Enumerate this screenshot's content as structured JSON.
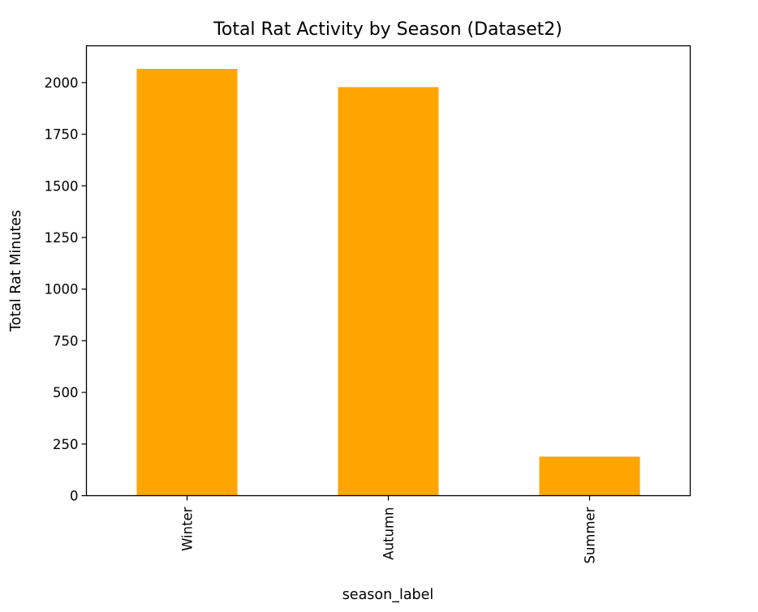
{
  "chart_data": {
    "type": "bar",
    "title": "Total Rat Activity by Season (Dataset2)",
    "xlabel": "season_label",
    "ylabel": "Total Rat Minutes",
    "categories": [
      "Winter",
      "Autumn",
      "Summer"
    ],
    "values": [
      2066,
      1978,
      189
    ],
    "ylim": [
      0,
      2178
    ],
    "yticks": [
      0,
      250,
      500,
      750,
      1000,
      1250,
      1500,
      1750,
      2000
    ],
    "bar_color": "#ffa500",
    "grid": false,
    "legend": "none",
    "xtick_rotation": "vertical"
  }
}
